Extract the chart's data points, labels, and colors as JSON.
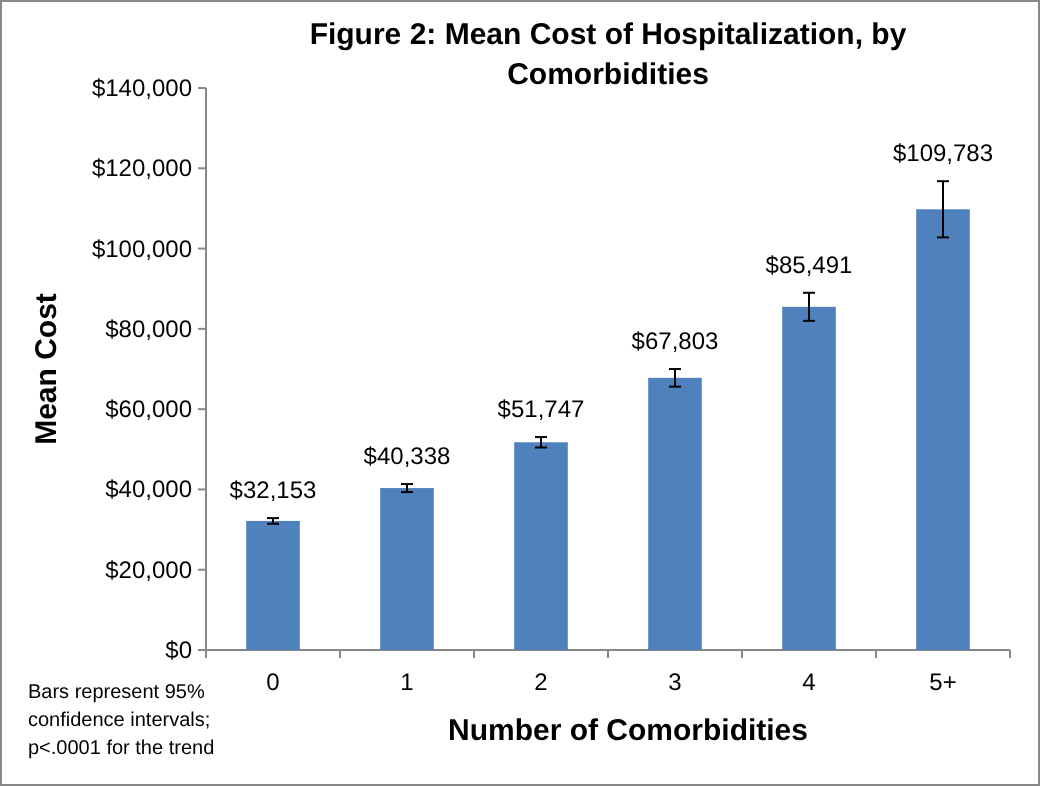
{
  "chart_data": {
    "type": "bar",
    "title": "Figure 2: Mean Cost of Hospitalization,  by Comorbidities",
    "xlabel": "Number of Comorbidities",
    "ylabel": "Mean Cost",
    "categories": [
      "0",
      "1",
      "2",
      "3",
      "4",
      "5+"
    ],
    "values": [
      32153,
      40338,
      51747,
      67803,
      85491,
      109783
    ],
    "errors": [
      700,
      1000,
      1300,
      2200,
      3500,
      7000
    ],
    "value_labels": [
      "$32,153",
      "$40,338",
      "$51,747",
      "$67,803",
      "$85,491",
      "$109,783"
    ],
    "color": "#4f81bd",
    "ylim": [
      0,
      140000
    ],
    "yticks": [
      {
        "value": 0,
        "label": "$0"
      },
      {
        "value": 20000,
        "label": "$20,000"
      },
      {
        "value": 40000,
        "label": "$40,000"
      },
      {
        "value": 60000,
        "label": "$60,000"
      },
      {
        "value": 80000,
        "label": "$80,000"
      },
      {
        "value": 100000,
        "label": "$100,000"
      },
      {
        "value": 120000,
        "label": "$120,000"
      },
      {
        "value": 140000,
        "label": "$140,000"
      }
    ],
    "grid": false,
    "annotations": [
      "Bars represent 95% confidence intervals; p<.0001 for the trend"
    ]
  }
}
